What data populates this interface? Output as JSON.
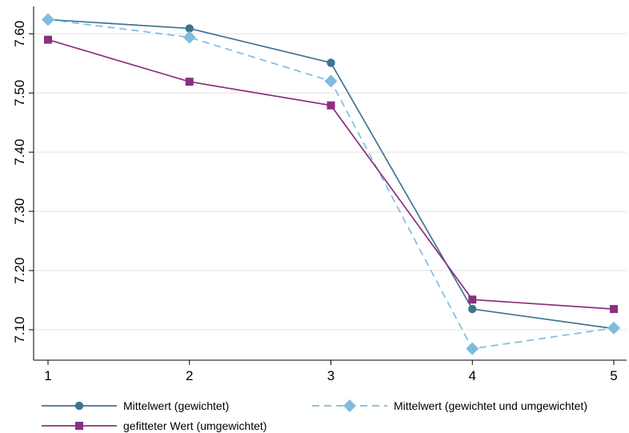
{
  "chart_data": {
    "type": "line",
    "x": [
      1,
      2,
      3,
      4,
      5
    ],
    "xlim": [
      1,
      5
    ],
    "xticks": [
      "1",
      "2",
      "3",
      "4",
      "5"
    ],
    "ylim": [
      7.05,
      7.63
    ],
    "yticks": [
      7.1,
      7.2,
      7.3,
      7.4,
      7.5,
      7.6
    ],
    "ytick_labels": [
      "7.10",
      "7.20",
      "7.30",
      "7.40",
      "7.50",
      "7.60"
    ],
    "title": "",
    "xlabel": "",
    "ylabel": "",
    "grid": "horizontal",
    "legend_position": "bottom",
    "series": [
      {
        "name": "Mittelwert (gewichtet)",
        "values": [
          7.624,
          7.609,
          7.551,
          7.135,
          7.102
        ],
        "color": "#3e7491",
        "marker": "circle",
        "dash": "solid"
      },
      {
        "name": "Mittelwert (gewichtet und umgewichtet)",
        "values": [
          7.624,
          7.594,
          7.52,
          7.068,
          7.103
        ],
        "color": "#7fbcdc",
        "marker": "diamond",
        "dash": "dashed"
      },
      {
        "name": "gefitteter Wert (umgewichtet)",
        "values": [
          7.59,
          7.519,
          7.479,
          7.151,
          7.135
        ],
        "color": "#8b2f80",
        "marker": "square",
        "dash": "solid"
      }
    ]
  }
}
